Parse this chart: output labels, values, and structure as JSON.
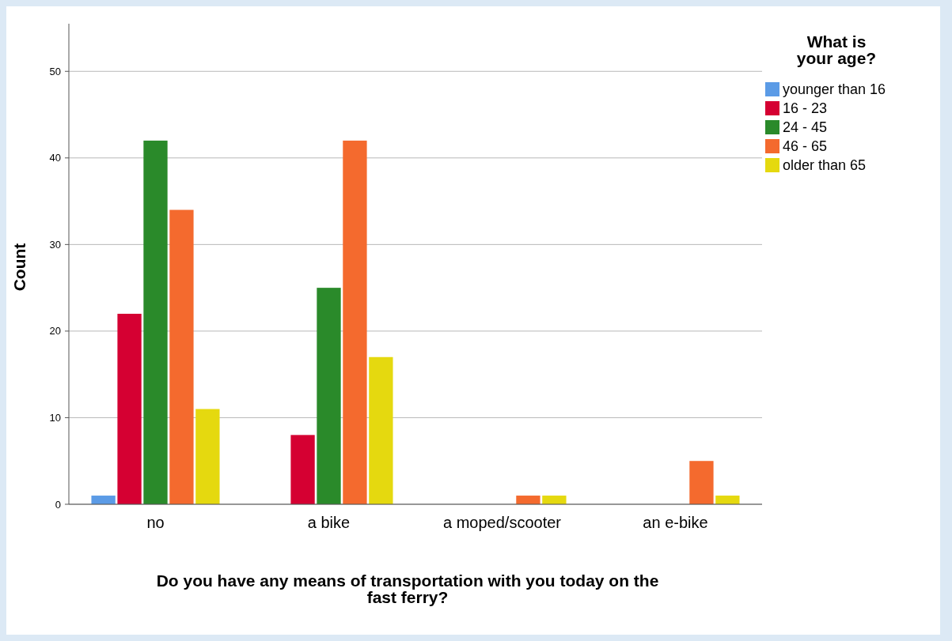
{
  "chart_data": {
    "type": "bar",
    "xlabel": "Do you have any means of transportation with you today on the fast ferry?",
    "ylabel": "Count",
    "legend_title": "What is your age?",
    "categories": [
      "no",
      "a bike",
      "a moped/scooter",
      "an e-bike"
    ],
    "series": [
      {
        "name": "younger than 16",
        "color": "#5b9be6",
        "values": [
          1,
          null,
          null,
          null
        ]
      },
      {
        "name": "16 - 23",
        "color": "#d50032",
        "values": [
          22,
          8,
          null,
          null
        ]
      },
      {
        "name": "24 - 45",
        "color": "#2a8a2a",
        "values": [
          42,
          25,
          null,
          null
        ]
      },
      {
        "name": "46 - 65",
        "color": "#f46a2e",
        "values": [
          34,
          42,
          1,
          5
        ]
      },
      {
        "name": "older than 65",
        "color": "#e5d90f",
        "values": [
          11,
          17,
          1,
          1
        ]
      }
    ],
    "ylim": [
      0,
      55.5
    ],
    "yticks": [
      0,
      10,
      20,
      30,
      40,
      50
    ],
    "grid": "y",
    "legend": "top right"
  }
}
